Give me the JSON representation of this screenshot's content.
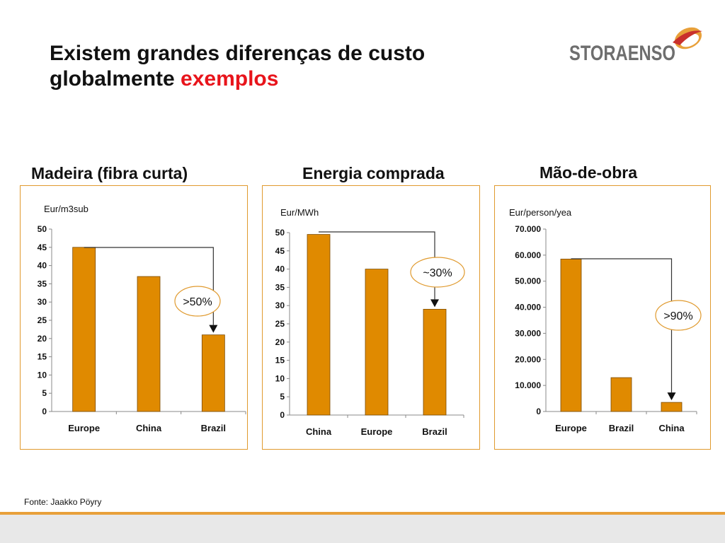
{
  "slide": {
    "title_line1": "Existem grandes diferenças de custo",
    "title_line2": "globalmente",
    "title_accent": "exemplos",
    "source": "Fonte: Jaakko Pöyry",
    "accent_color": "#e8141b",
    "bar_color": "#e08a00",
    "panel_border_color": "#e09a2e"
  },
  "logo": {
    "text": "STORAENSO"
  },
  "chart_data": [
    {
      "type": "bar",
      "title": "Madeira (fibra curta)",
      "unit_label": "Eur/m3sub",
      "categories": [
        "Europe",
        "China",
        "Brazil"
      ],
      "values": [
        45,
        37,
        21
      ],
      "ylim": [
        0,
        50
      ],
      "yticks": [
        0,
        5,
        10,
        15,
        20,
        25,
        30,
        35,
        40,
        45,
        50
      ],
      "ytick_labels": [
        "0",
        "5",
        "10",
        "15",
        "20",
        "25",
        "30",
        "35",
        "40",
        "45",
        "50"
      ],
      "annotation": {
        "text": ">50%",
        "from": "Europe",
        "to": "Brazil"
      }
    },
    {
      "type": "bar",
      "title": "Energia comprada",
      "unit_label": "Eur/MWh",
      "categories": [
        "China",
        "Europe",
        "Brazil"
      ],
      "values": [
        49.5,
        40,
        29
      ],
      "ylim": [
        0,
        50
      ],
      "yticks": [
        0,
        5,
        10,
        15,
        20,
        25,
        30,
        35,
        40,
        45,
        50
      ],
      "ytick_labels": [
        "0",
        "5",
        "10",
        "15",
        "20",
        "25",
        "30",
        "35",
        "40",
        "45",
        "50"
      ],
      "annotation": {
        "text": "~30%",
        "from": "China",
        "to": "Brazil"
      }
    },
    {
      "type": "bar",
      "title": "Mão-de-obra",
      "unit_label": "Eur/person/yea",
      "categories": [
        "Europe",
        "Brazil",
        "China"
      ],
      "values": [
        58500,
        13000,
        3500
      ],
      "ylim": [
        0,
        70000
      ],
      "yticks": [
        0,
        10000,
        20000,
        30000,
        40000,
        50000,
        60000,
        70000
      ],
      "ytick_labels": [
        "0",
        "10.000",
        "20.000",
        "30.000",
        "40.000",
        "50.000",
        "60.000",
        "70.000"
      ],
      "annotation": {
        "text": ">90%",
        "from": "Europe",
        "to": "China"
      }
    }
  ]
}
